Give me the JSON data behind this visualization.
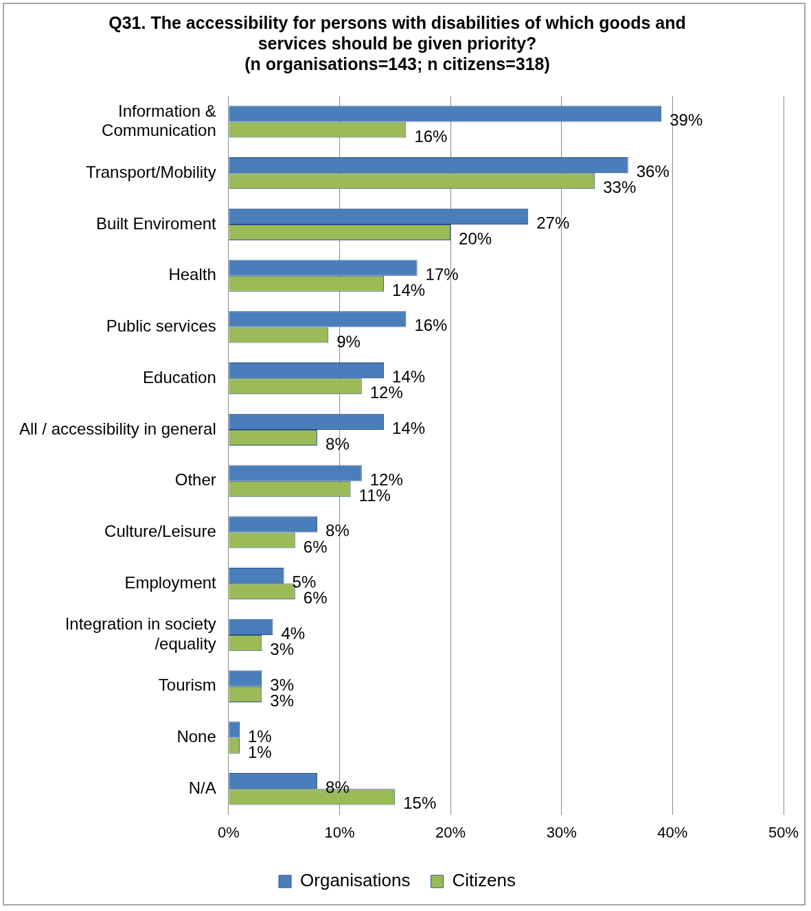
{
  "chart_data": {
    "type": "bar",
    "orientation": "horizontal",
    "title": "Q31. The accessibility for persons with disabilities of which goods and\nservices should be given priority?\n(n organisations=143; n citizens=318)",
    "categories": [
      "Information &\nCommunication",
      "Transport/Mobility",
      "Built Enviroment",
      "Health",
      "Public services",
      "Education",
      "All / accessibility in general",
      "Other",
      "Culture/Leisure",
      "Employment",
      "Integration in society\n/equality",
      "Tourism",
      "None",
      "N/A"
    ],
    "series": [
      {
        "name": "Organisations",
        "color": "#4a7ebb",
        "values": [
          39,
          36,
          27,
          17,
          16,
          14,
          14,
          12,
          8,
          5,
          4,
          3,
          1,
          8
        ],
        "value_labels": [
          "39%",
          "36%",
          "27%",
          "17%",
          "16%",
          "14%",
          "14%",
          "12%",
          "8%",
          "5%",
          "4%",
          "3%",
          "1%",
          "8%"
        ]
      },
      {
        "name": "Citizens",
        "color": "#9bbb59",
        "values": [
          16,
          33,
          20,
          14,
          9,
          12,
          8,
          11,
          6,
          6,
          3,
          3,
          1,
          15
        ],
        "value_labels": [
          "16%",
          "33%",
          "20%",
          "14%",
          "9%",
          "12%",
          "8%",
          "11%",
          "6%",
          "6%",
          "3%",
          "3%",
          "1%",
          "15%"
        ]
      }
    ],
    "xlim": [
      0,
      50
    ],
    "xticks": [
      {
        "value": 0,
        "label": "0%"
      },
      {
        "value": 10,
        "label": "10%"
      },
      {
        "value": 20,
        "label": "20%"
      },
      {
        "value": 30,
        "label": "30%"
      },
      {
        "value": 40,
        "label": "40%"
      },
      {
        "value": 50,
        "label": "50%"
      }
    ],
    "grid": "x",
    "legend": "bottom"
  }
}
